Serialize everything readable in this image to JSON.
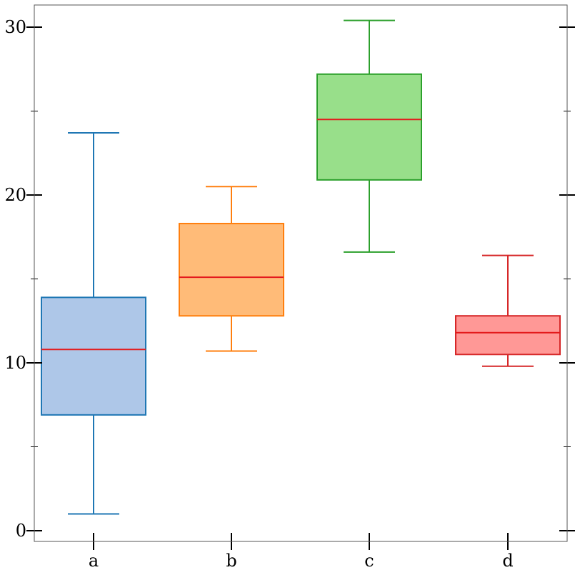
{
  "chart_data": {
    "type": "box",
    "title": "",
    "xlabel": "",
    "ylabel": "",
    "ylim": [
      -0.1,
      31.5
    ],
    "y_ticks": [
      "0",
      "10",
      "20",
      "30"
    ],
    "grid": false,
    "categories": [
      "a",
      "b",
      "c",
      "d"
    ],
    "boxes": [
      {
        "category": "a",
        "whisker_low": 1.0,
        "q1": 6.9,
        "median": 10.8,
        "q3": 13.9,
        "whisker_high": 23.7,
        "fill": "#aec7e8",
        "edge": "#1f77b4"
      },
      {
        "category": "b",
        "whisker_low": 10.7,
        "q1": 12.8,
        "median": 15.1,
        "q3": 18.3,
        "whisker_high": 20.5,
        "fill": "#ffbb78",
        "edge": "#ff7f0e"
      },
      {
        "category": "c",
        "whisker_low": 16.6,
        "q1": 20.9,
        "median": 24.5,
        "q3": 27.2,
        "whisker_high": 30.4,
        "fill": "#98df8a",
        "edge": "#2ca02c"
      },
      {
        "category": "d",
        "whisker_low": 9.8,
        "q1": 10.5,
        "median": 11.8,
        "q3": 12.8,
        "whisker_high": 16.4,
        "fill": "#ff9896",
        "edge": "#d62728"
      }
    ],
    "median_color": "#e41a1c"
  }
}
